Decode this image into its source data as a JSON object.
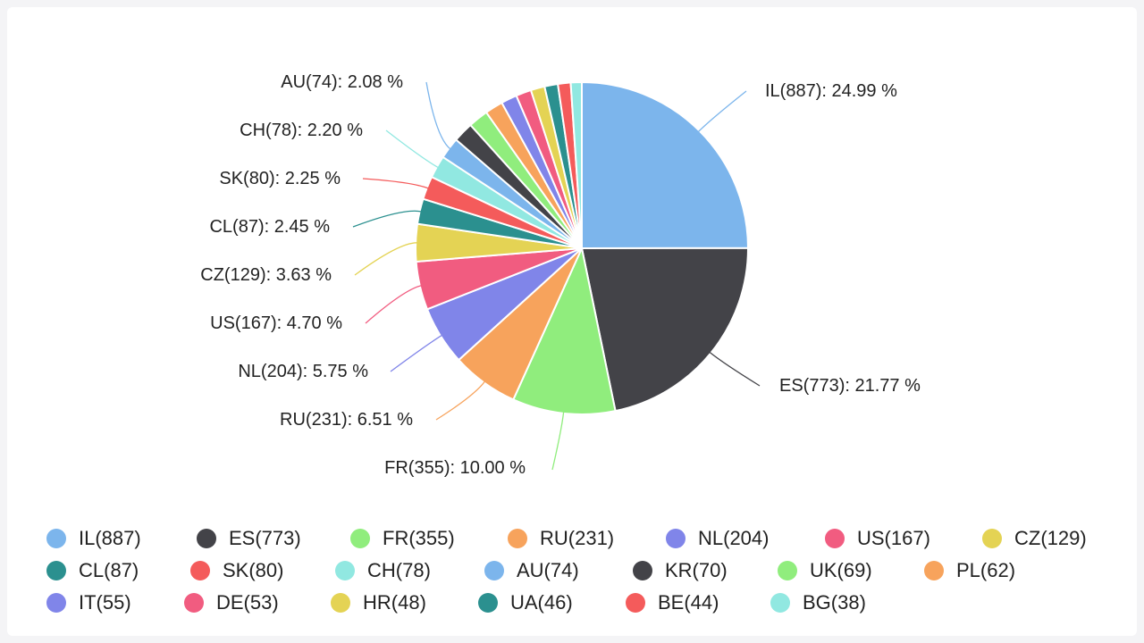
{
  "chart_data": {
    "type": "pie",
    "title": "",
    "slices": [
      {
        "label": "IL(887)",
        "value": 887,
        "percent_label": "IL(887): 24.99 %",
        "color": "#7cb5ec"
      },
      {
        "label": "ES(773)",
        "value": 773,
        "percent_label": "ES(773): 21.77 %",
        "color": "#434348"
      },
      {
        "label": "FR(355)",
        "value": 355,
        "percent_label": "FR(355): 10.00 %",
        "color": "#90ed7d"
      },
      {
        "label": "RU(231)",
        "value": 231,
        "percent_label": "RU(231): 6.51 %",
        "color": "#f7a35c"
      },
      {
        "label": "NL(204)",
        "value": 204,
        "percent_label": "NL(204): 5.75 %",
        "color": "#8085e9"
      },
      {
        "label": "US(167)",
        "value": 167,
        "percent_label": "US(167): 4.70 %",
        "color": "#f15c80"
      },
      {
        "label": "CZ(129)",
        "value": 129,
        "percent_label": "CZ(129): 3.63 %",
        "color": "#e4d354"
      },
      {
        "label": "CL(87)",
        "value": 87,
        "percent_label": "CL(87): 2.45 %",
        "color": "#2b908f"
      },
      {
        "label": "SK(80)",
        "value": 80,
        "percent_label": "SK(80): 2.25 %",
        "color": "#f45b5b"
      },
      {
        "label": "CH(78)",
        "value": 78,
        "percent_label": "CH(78): 2.20 %",
        "color": "#91e8e1"
      },
      {
        "label": "AU(74)",
        "value": 74,
        "percent_label": "AU(74): 2.08 %",
        "color": "#7cb5ec"
      },
      {
        "label": "KR(70)",
        "value": 70,
        "percent_label": "",
        "color": "#434348"
      },
      {
        "label": "UK(69)",
        "value": 69,
        "percent_label": "",
        "color": "#90ed7d"
      },
      {
        "label": "PL(62)",
        "value": 62,
        "percent_label": "",
        "color": "#f7a35c"
      },
      {
        "label": "IT(55)",
        "value": 55,
        "percent_label": "",
        "color": "#8085e9"
      },
      {
        "label": "DE(53)",
        "value": 53,
        "percent_label": "",
        "color": "#f15c80"
      },
      {
        "label": "HR(48)",
        "value": 48,
        "percent_label": "",
        "color": "#e4d354"
      },
      {
        "label": "UA(46)",
        "value": 46,
        "percent_label": "",
        "color": "#2b908f"
      },
      {
        "label": "BE(44)",
        "value": 44,
        "percent_label": "",
        "color": "#f45b5b"
      },
      {
        "label": "BG(38)",
        "value": 38,
        "percent_label": "",
        "color": "#91e8e1"
      }
    ],
    "legend_position": "bottom"
  }
}
